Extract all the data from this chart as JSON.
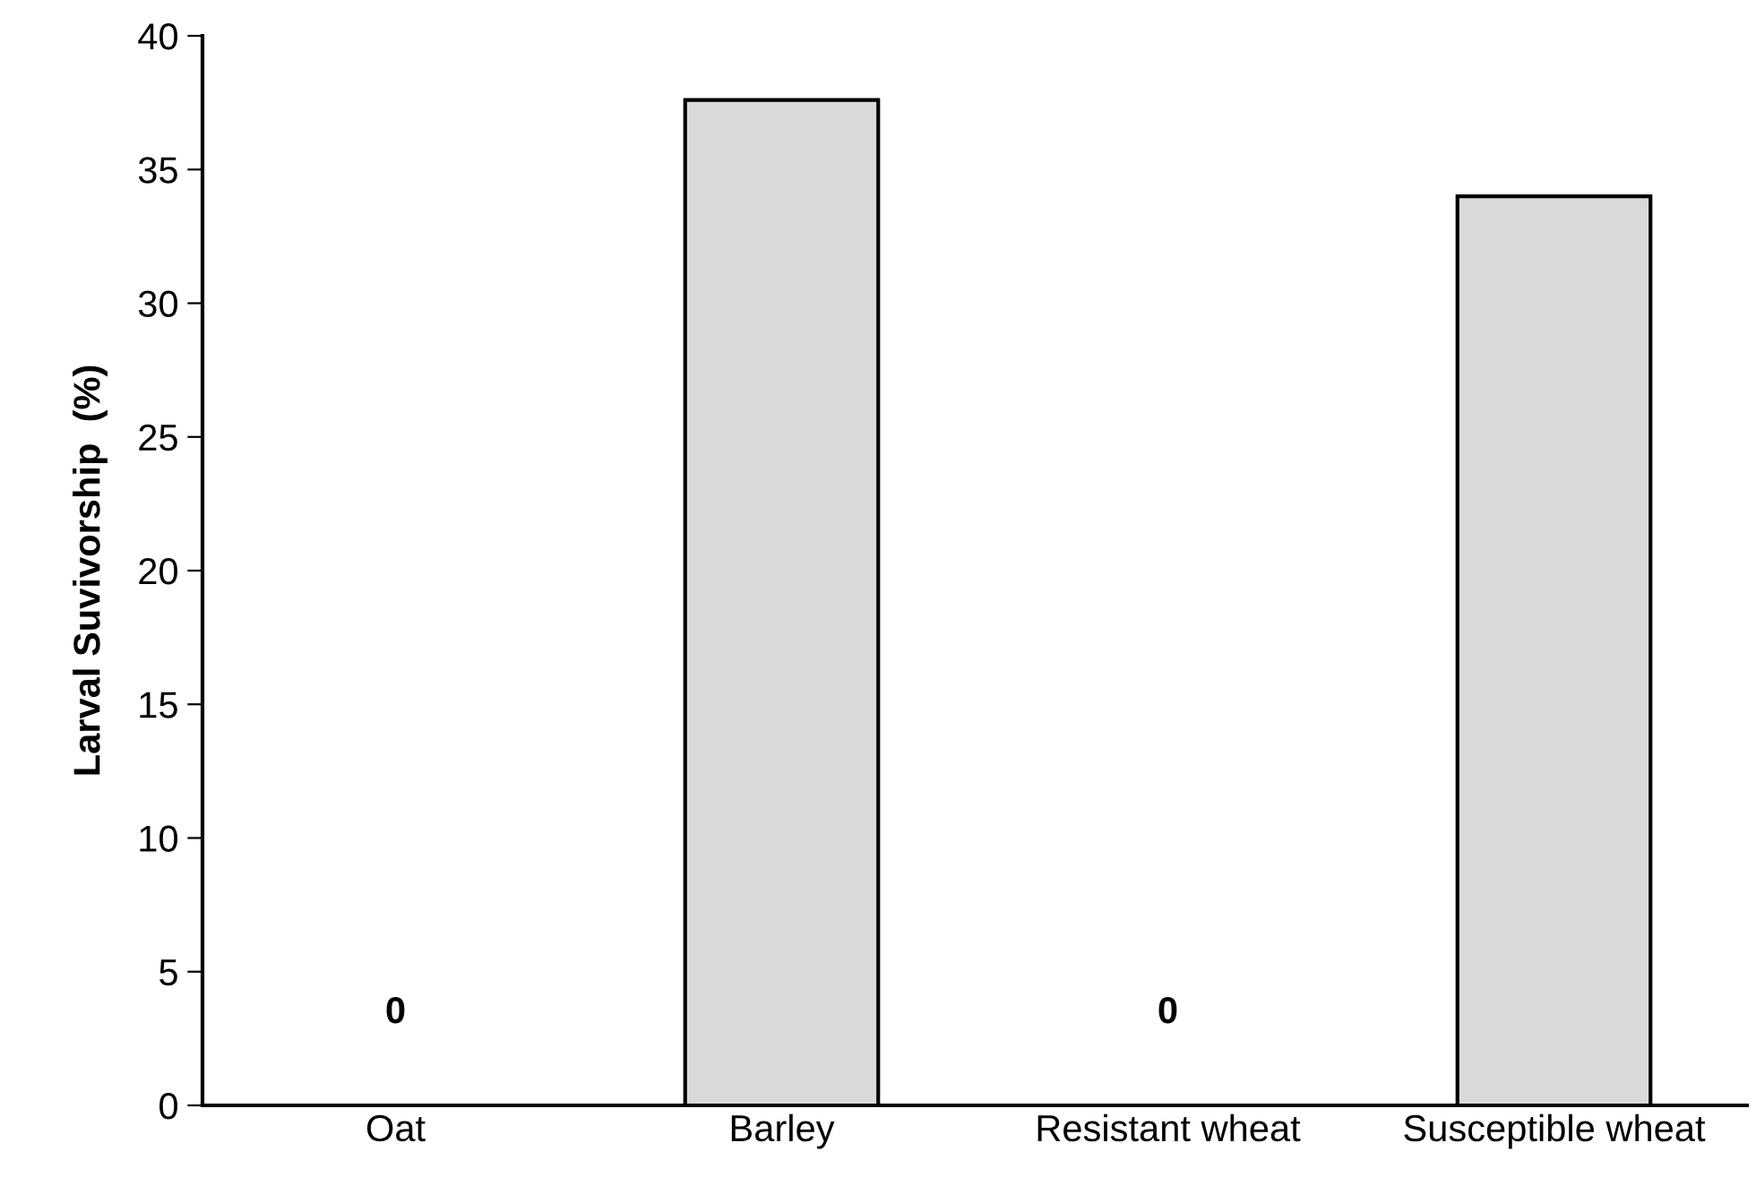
{
  "chart_data": {
    "type": "bar",
    "ylabel": "Larval Suvivorship  (%)",
    "categories": [
      "Oat",
      "Barley",
      "Resistant wheat",
      "Susceptible wheat"
    ],
    "values": [
      0,
      37.6,
      0,
      34.0
    ],
    "value_labels": [
      "0",
      null,
      "0",
      null
    ],
    "color": "#d9d9d9",
    "ylim": [
      0,
      40
    ],
    "yticks": [
      0,
      5,
      10,
      15,
      20,
      25,
      30,
      35,
      40
    ],
    "grid": false,
    "legend": false
  }
}
